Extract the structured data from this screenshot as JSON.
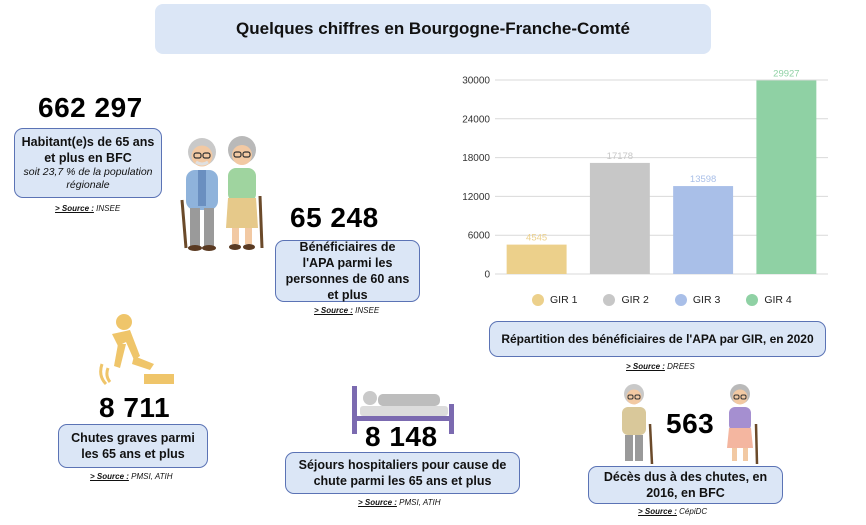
{
  "title": "Quelques chiffres en Bourgogne-Franche-Comté",
  "stats": {
    "population": {
      "number": "662 297",
      "label": "Habitant(e)s de 65 ans et plus en BFC",
      "sub": "soit 23,7 % de la population régionale",
      "source_prefix": "> Source :",
      "source": "INSEE"
    },
    "apa": {
      "number": "65 248",
      "label": "Bénéficiaires de l'APA parmi les personnes de 60 ans et plus",
      "source_prefix": "> Source :",
      "source": "INSEE"
    },
    "falls": {
      "number": "8 711",
      "label": "Chutes graves parmi les 65 ans et plus",
      "source_prefix": "> Source :",
      "source": "PMSI, ATIH"
    },
    "hospital": {
      "number": "8 148",
      "label": "Séjours hospitaliers pour cause de chute parmi les 65 ans et plus",
      "source_prefix": "> Source :",
      "source": "PMSI, ATIH"
    },
    "deaths": {
      "number": "563",
      "label": "Décès dus à des chutes, en 2016, en BFC",
      "source_prefix": "> Source :",
      "source": "CépiDC"
    }
  },
  "chart_caption": "Répartition des bénéficiaires de l'APA par GIR, en 2020",
  "chart_source_prefix": "> Source :",
  "chart_source": "DREES",
  "icons": {
    "elderly_couple": "elderly-couple-icon",
    "fall": "fall-icon",
    "hospital_bed": "hospital-bed-icon",
    "elderly_couple_small": "elderly-couple-small-icon"
  },
  "chart_data": {
    "type": "bar",
    "categories": [
      "GIR 1",
      "GIR 2",
      "GIR 3",
      "GIR 4"
    ],
    "values": [
      4545,
      17178,
      13598,
      29927
    ],
    "value_labels": [
      "4545",
      "17178",
      "13598",
      "29927"
    ],
    "colors": [
      "#ecd08b",
      "#c7c7c7",
      "#a9bfe8",
      "#8fd1a4"
    ],
    "yticks": [
      0,
      6000,
      12000,
      18000,
      24000,
      30000
    ],
    "ytick_labels": [
      "0",
      "6000",
      "12000",
      "18000",
      "24000",
      "30000"
    ],
    "ylim": [
      0,
      30000
    ],
    "grid": true,
    "legend_position": "bottom",
    "title": "",
    "xlabel": "",
    "ylabel": ""
  }
}
